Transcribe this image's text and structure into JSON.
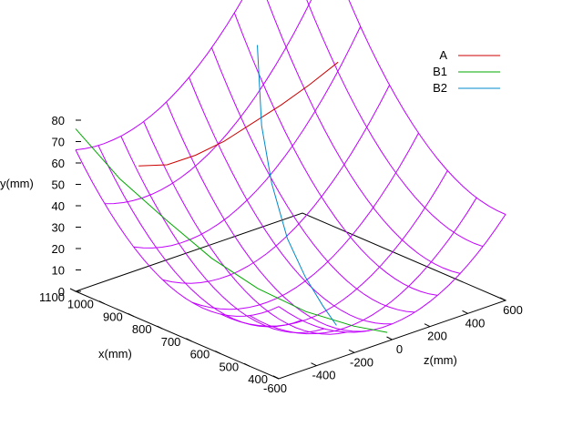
{
  "chart_data": {
    "type": "surface3d",
    "axes": {
      "x": {
        "label": "x(mm)",
        "ticks": [
          400,
          500,
          600,
          700,
          800,
          900,
          1000,
          1100
        ],
        "range": [
          400,
          1100
        ]
      },
      "z": {
        "label": "z(mm)",
        "ticks": [
          -600,
          -400,
          -200,
          0,
          200,
          400,
          600
        ],
        "range": [
          -600,
          600
        ]
      },
      "y": {
        "label": "y(mm)",
        "ticks": [
          0,
          10,
          20,
          30,
          40,
          50,
          60,
          70,
          80
        ],
        "range": [
          0,
          80
        ]
      }
    },
    "surface": {
      "color": "#c000ff",
      "x_grid": [
        400,
        500,
        600,
        700,
        800,
        900,
        1000,
        1100
      ],
      "z_grid": [
        -600,
        -480,
        -360,
        -240,
        -120,
        0,
        120,
        240,
        360,
        480,
        600
      ],
      "formula_note": "",
      "y_min": 0,
      "y_rise_x": 24,
      "y_rise_z": 52
    },
    "series": [
      {
        "name": "A",
        "color": "#cc0000",
        "points": [
          [
            1000,
            -420,
            59
          ],
          [
            980,
            -300,
            57
          ],
          [
            960,
            -180,
            59
          ],
          [
            940,
            -60,
            63
          ],
          [
            920,
            60,
            69
          ],
          [
            900,
            180,
            75
          ],
          [
            880,
            300,
            82
          ],
          [
            860,
            420,
            90
          ]
        ]
      },
      {
        "name": "B1",
        "color": "#00aa00",
        "points": [
          [
            1100,
            -600,
            76
          ],
          [
            1000,
            -520,
            56
          ],
          [
            900,
            -430,
            40
          ],
          [
            800,
            -340,
            25
          ],
          [
            700,
            -250,
            14
          ],
          [
            600,
            -150,
            6
          ],
          [
            500,
            -50,
            2
          ],
          [
            430,
            20,
            1
          ]
        ]
      },
      {
        "name": "B2",
        "color": "#0088cc",
        "points": [
          [
            1060,
            300,
            90
          ],
          [
            980,
            200,
            60
          ],
          [
            900,
            130,
            40
          ],
          [
            800,
            60,
            22
          ],
          [
            700,
            0,
            12
          ],
          [
            600,
            -60,
            6
          ],
          [
            520,
            -110,
            3
          ]
        ]
      }
    ],
    "legend": {
      "position": "top-right",
      "entries": [
        "A",
        "B1",
        "B2"
      ]
    },
    "grid": false
  }
}
